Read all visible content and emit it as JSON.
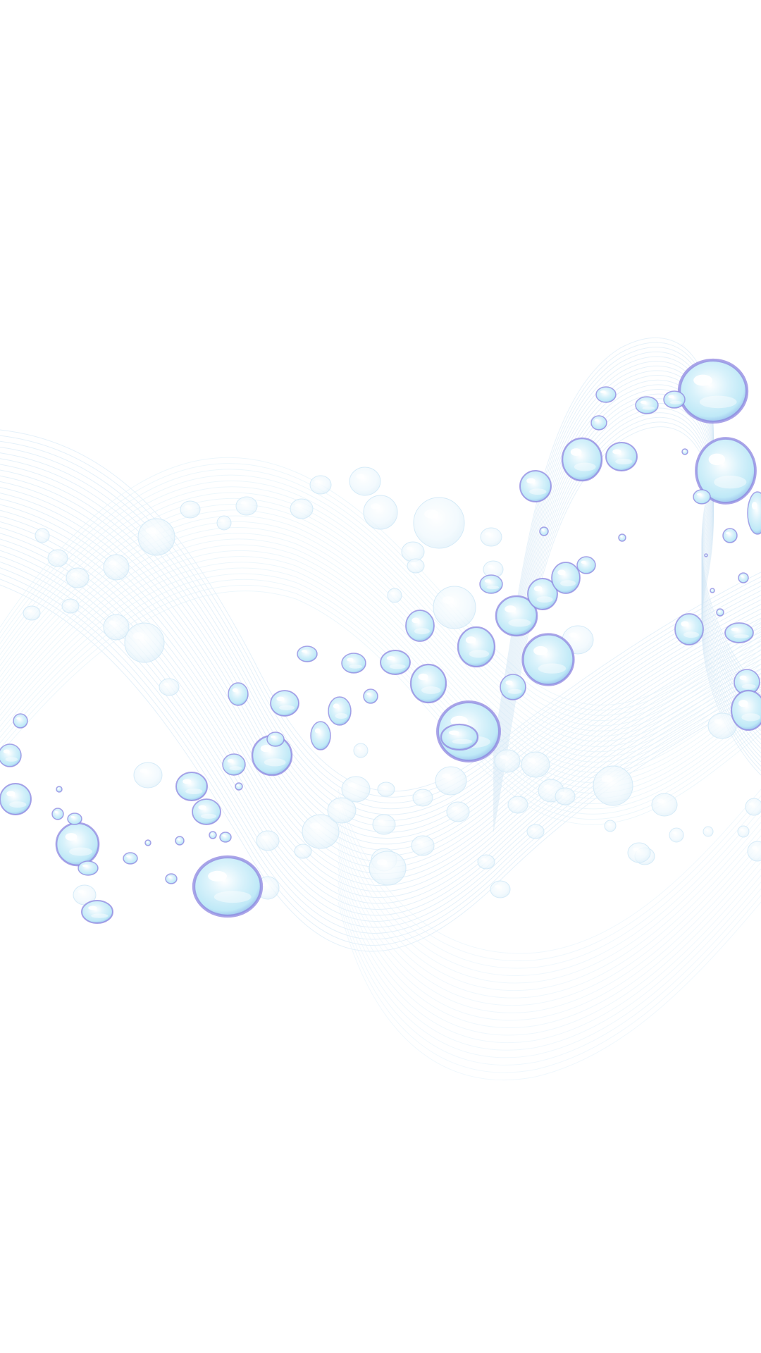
{
  "scene": {
    "subject": "water-bubbles-and-wave-lines",
    "colors": {
      "background": "#ffffff",
      "wave_line": "#cfe6f5",
      "wave_line_soft": "#e6f3fb",
      "bubble_fill": "#d9f2fb",
      "bubble_core": "#bfe9f7",
      "bubble_rim": "#8f86e0",
      "bubble_highlight": "#ffffff"
    }
  }
}
